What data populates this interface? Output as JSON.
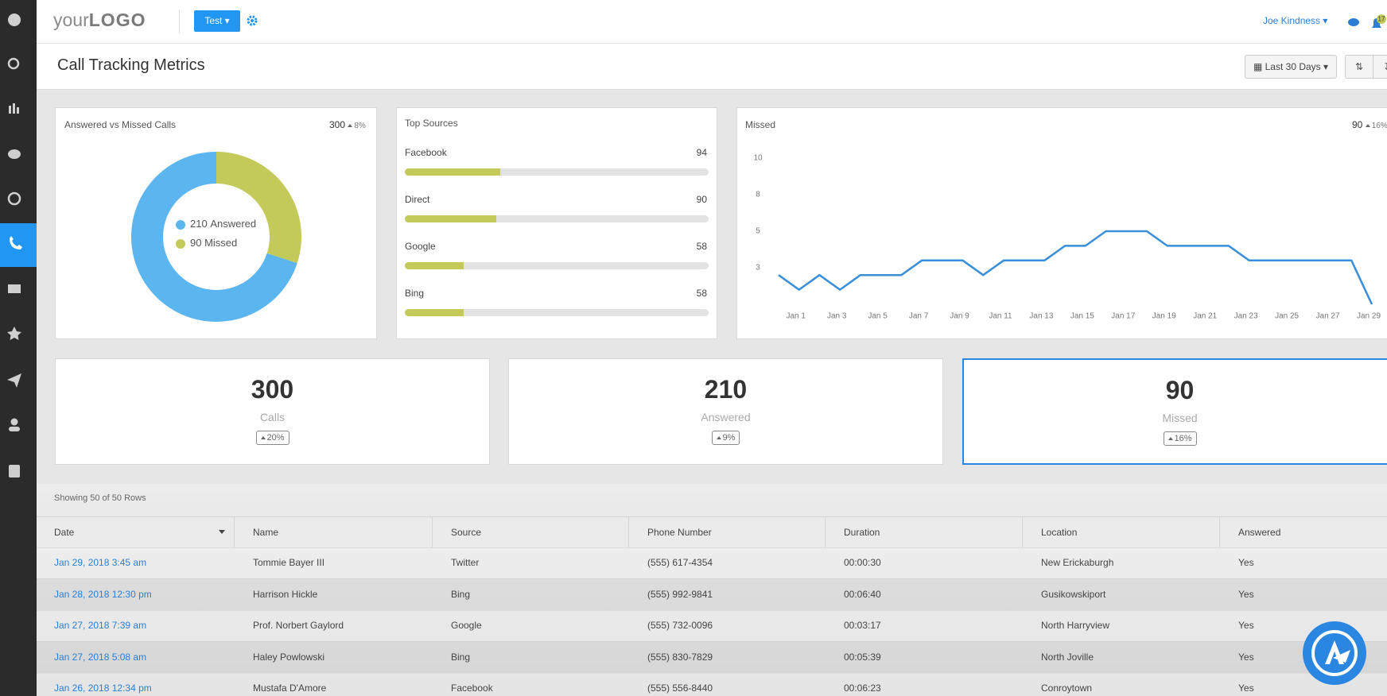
{
  "header": {
    "logo_prefix": "your",
    "logo_brand": "LOGO",
    "workspace": "Test",
    "user": "Joe Kindness",
    "notifications": "17"
  },
  "page": {
    "title": "Call Tracking Metrics",
    "date_range": "Last 30 Days"
  },
  "chart_data": [
    {
      "type": "pie",
      "title": "Answered vs Missed Calls",
      "total": 300,
      "change": "8%",
      "categories": [
        "Answered",
        "Missed"
      ],
      "values": [
        210,
        90
      ],
      "colors": [
        "#5bb6ef",
        "#c3ca5a"
      ],
      "donut": true
    },
    {
      "type": "bar",
      "title": "Top Sources",
      "categories": [
        "Facebook",
        "Direct",
        "Google",
        "Bing"
      ],
      "values": [
        94,
        90,
        58,
        58
      ],
      "xlim": [
        0,
        300
      ],
      "color": "#c3ca5a"
    },
    {
      "type": "line",
      "title": "Missed",
      "total": 90,
      "change": "16%",
      "categories": [
        null,
        "Jan 1",
        null,
        "Jan 3",
        null,
        "Jan 5",
        null,
        "Jan 7",
        null,
        "Jan 9",
        null,
        "Jan 11",
        null,
        "Jan 13",
        null,
        "Jan 15",
        null,
        "Jan 17",
        null,
        "Jan 19",
        null,
        "Jan 21",
        null,
        "Jan 23",
        null,
        "Jan 25",
        null,
        "Jan 27",
        null,
        "Jan 29"
      ],
      "series": [
        {
          "name": "Missed",
          "color": "#3a8fd9",
          "values": [
            2,
            1,
            2,
            1,
            2,
            2,
            2,
            3,
            3,
            3,
            2,
            3,
            3,
            3,
            4,
            4,
            5,
            5,
            5,
            4,
            4,
            4,
            4,
            3,
            3,
            3,
            3,
            3,
            3,
            0
          ]
        }
      ],
      "ylim": [
        0,
        10
      ],
      "yticks": [
        {
          "value": 2.5,
          "label": "3"
        },
        5,
        {
          "value": 7.5,
          "label": "8"
        },
        10
      ],
      "grid": false
    }
  ],
  "kpis": [
    {
      "value": "300",
      "label": "Calls",
      "change": "20%"
    },
    {
      "value": "210",
      "label": "Answered",
      "change": "9%"
    },
    {
      "value": "90",
      "label": "Missed",
      "change": "16%"
    }
  ],
  "table": {
    "summary": "Showing 50 of 50 Rows",
    "columns": [
      "Date",
      "Name",
      "Source",
      "Phone Number",
      "Duration",
      "Location",
      "Answered"
    ],
    "rows": [
      [
        "Jan 29, 2018 3:45 am",
        "Tommie Bayer III",
        "Twitter",
        "(555) 617-4354",
        "00:00:30",
        "New Erickaburgh",
        "Yes"
      ],
      [
        "Jan 28, 2018 12:30 pm",
        "Harrison Hickle",
        "Bing",
        "(555) 992-9841",
        "00:06:40",
        "Gusikowskiport",
        "Yes"
      ],
      [
        "Jan 27, 2018 7:39 am",
        "Prof. Norbert Gaylord",
        "Google",
        "(555) 732-0096",
        "00:03:17",
        "North Harryview",
        "Yes"
      ],
      [
        "Jan 27, 2018 5:08 am",
        "Haley Powlowski",
        "Bing",
        "(555) 830-7829",
        "00:05:39",
        "North Joville",
        "Yes"
      ],
      [
        "Jan 26, 2018 12:34 pm",
        "Mustafa D'Amore",
        "Facebook",
        "(555) 556-8440",
        "00:06:23",
        "Conroytown",
        "Yes"
      ]
    ]
  }
}
